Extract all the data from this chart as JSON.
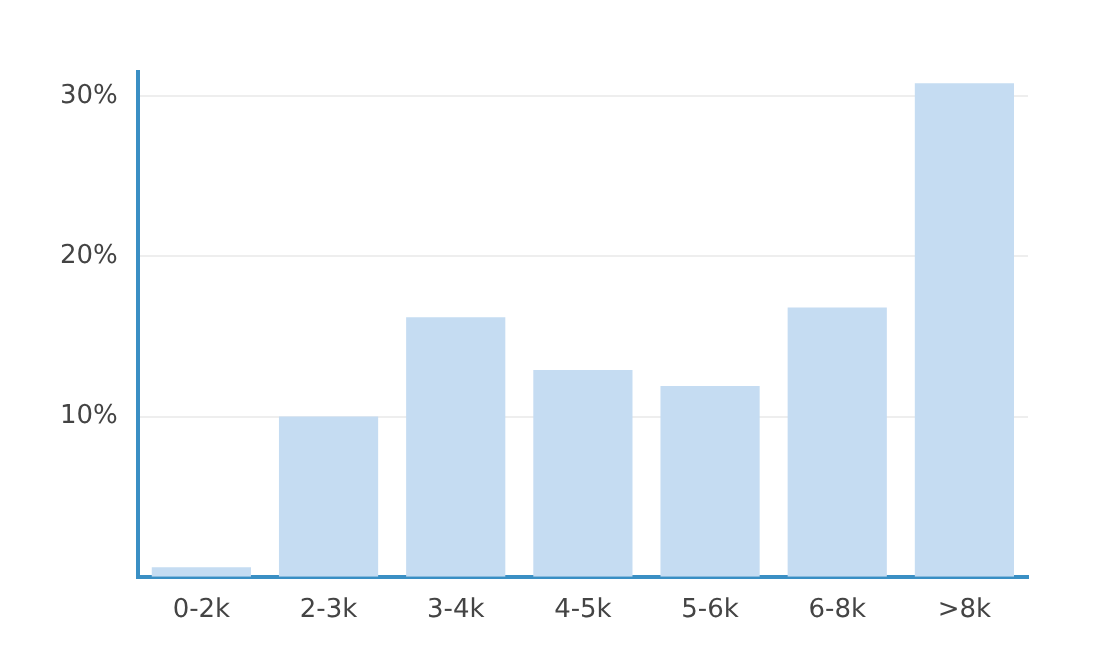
{
  "chart_data": {
    "type": "bar",
    "categories": [
      "0-2k",
      "2-3k",
      "3-4k",
      "4-5k",
      "5-6k",
      "6-8k",
      ">8k"
    ],
    "values": [
      0.6,
      10.0,
      16.2,
      12.9,
      11.9,
      16.8,
      30.8
    ],
    "color": "#c5dcf2",
    "ylim": [
      0,
      31.5
    ],
    "yticks": [
      {
        "value": 10,
        "label": "10%"
      },
      {
        "value": 20,
        "label": "20%"
      },
      {
        "value": 30,
        "label": "30%"
      }
    ],
    "grid": "y",
    "legend": false
  }
}
